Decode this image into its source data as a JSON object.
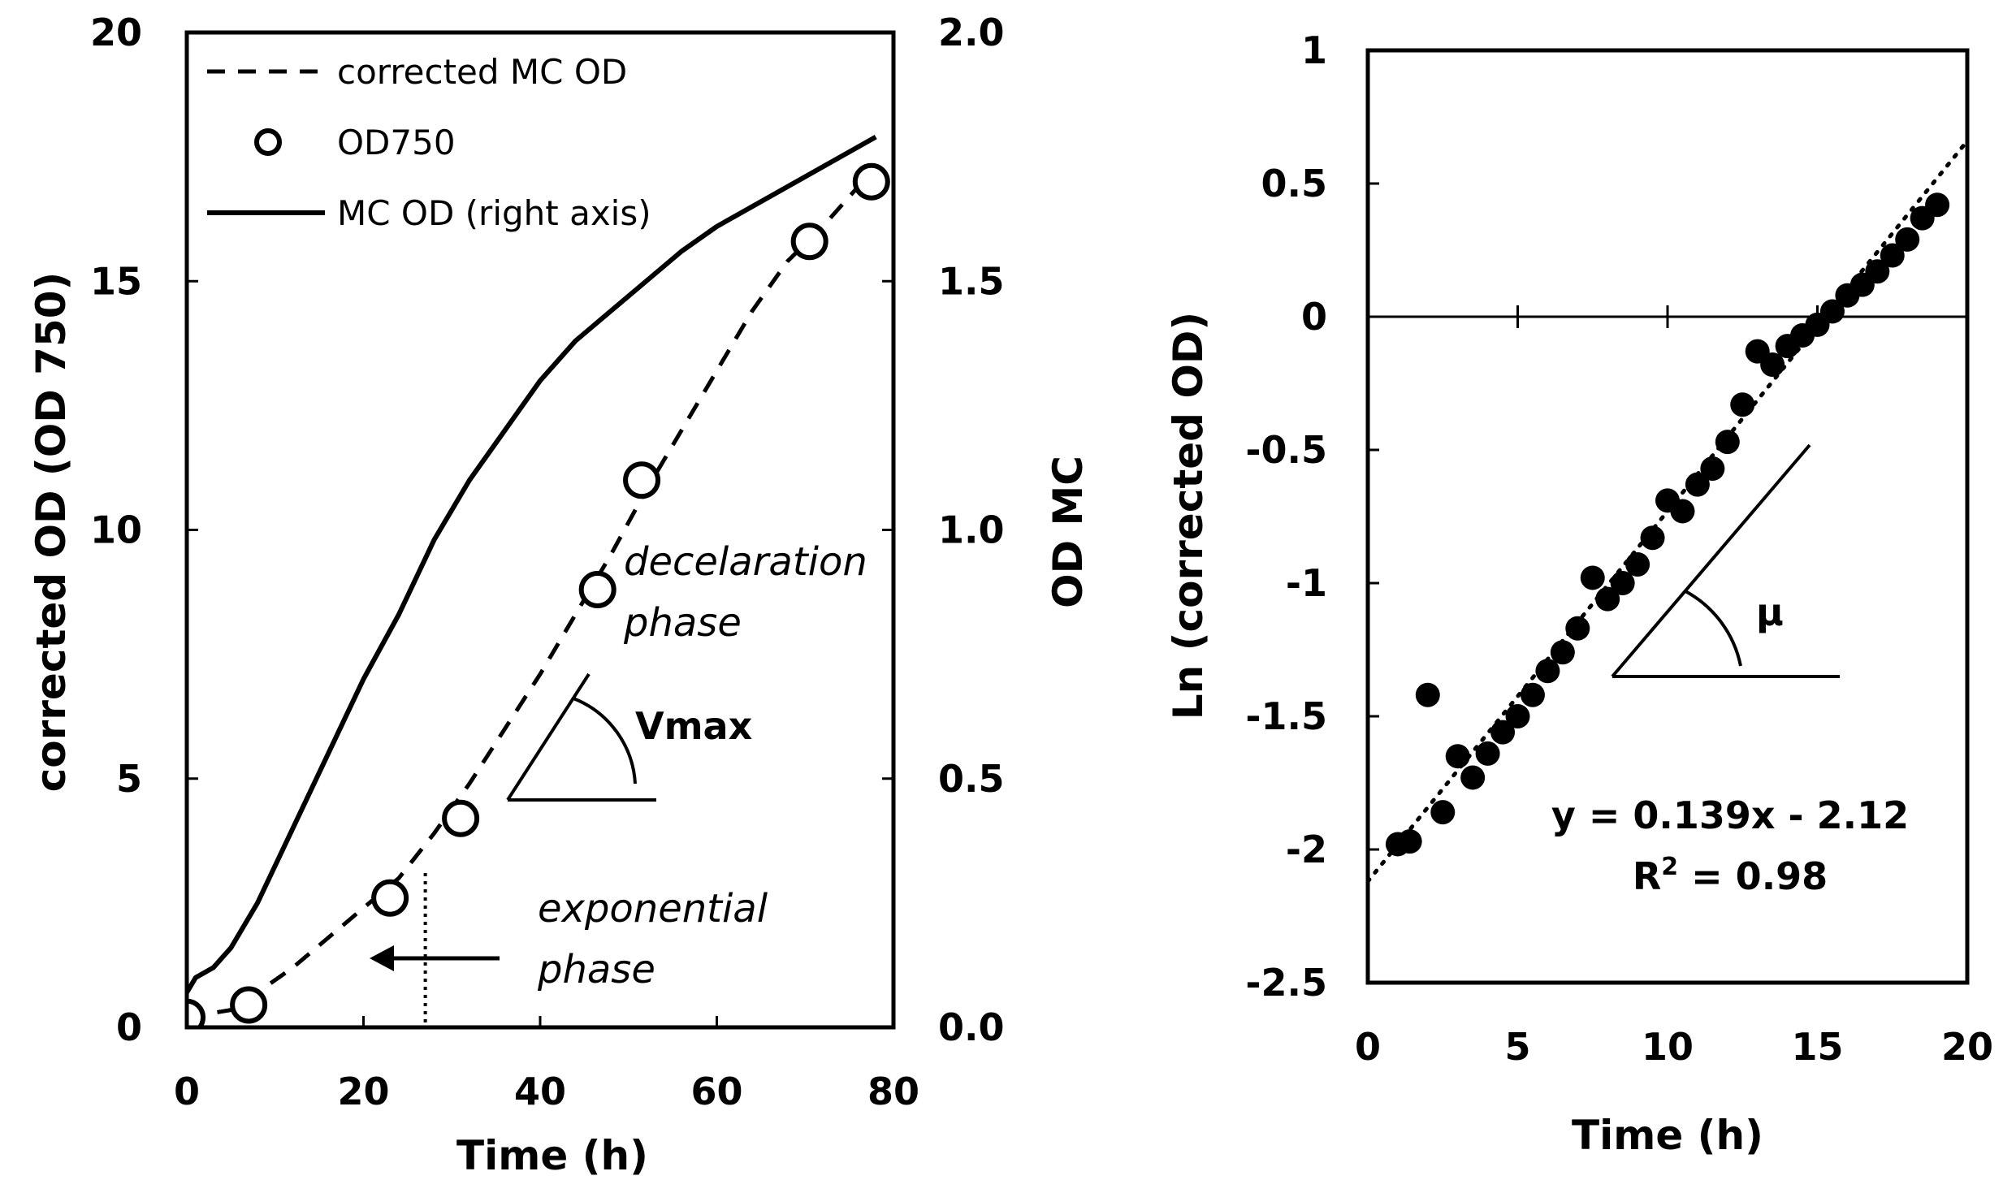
{
  "chart_data": [
    {
      "type": "line",
      "name": "growth-curve",
      "xlabel": "Time (h)",
      "ylabel": "corrected OD (OD 750)",
      "y2label": "OD MC",
      "xlim": [
        0,
        80
      ],
      "ylim": [
        0,
        20
      ],
      "y2lim": [
        0.0,
        2.0
      ],
      "xticks": [
        "0",
        "20",
        "40",
        "60",
        "80"
      ],
      "yticks": [
        "0",
        "5",
        "10",
        "15",
        "20"
      ],
      "y2ticks": [
        "0.0",
        "0.5",
        "1.0",
        "1.5",
        "2.0"
      ],
      "legend_position": "top-left",
      "series": [
        {
          "name": "corrected MC OD",
          "style": "dashed",
          "axis": "left",
          "x": [
            0,
            5,
            8,
            12,
            16,
            20,
            24,
            28,
            32,
            36,
            40,
            44,
            48,
            52,
            56,
            60,
            64,
            68,
            72,
            76,
            78
          ],
          "y": [
            0.2,
            0.35,
            0.7,
            1.2,
            1.8,
            2.4,
            3.0,
            3.9,
            4.9,
            6.0,
            7.1,
            8.3,
            9.5,
            10.8,
            12.0,
            13.2,
            14.4,
            15.4,
            16.1,
            16.9,
            17.3
          ]
        },
        {
          "name": "OD750",
          "style": "open-circle",
          "axis": "left",
          "x": [
            0,
            7,
            23,
            31,
            46.5,
            51.5,
            70.5,
            77.5
          ],
          "y": [
            0.2,
            0.45,
            2.6,
            4.2,
            8.8,
            11.0,
            15.8,
            17.0
          ]
        },
        {
          "name": "MC OD (right axis)",
          "style": "solid",
          "axis": "right",
          "x": [
            0,
            1,
            3,
            5,
            8,
            12,
            16,
            20,
            24,
            28,
            32,
            36,
            40,
            44,
            48,
            52,
            56,
            60,
            64,
            68,
            72,
            76,
            78
          ],
          "y": [
            0.07,
            0.1,
            0.12,
            0.16,
            0.25,
            0.4,
            0.55,
            0.7,
            0.83,
            0.98,
            1.1,
            1.2,
            1.3,
            1.38,
            1.44,
            1.5,
            1.56,
            1.61,
            1.65,
            1.69,
            1.73,
            1.77,
            1.79
          ]
        }
      ],
      "annotations": {
        "decel_line1": "decelaration",
        "decel_line2": "phase",
        "vmax": "Vmax",
        "exp_line1": "exponential",
        "exp_line2": "phase",
        "exp_boundary_x": 27
      }
    },
    {
      "type": "scatter",
      "name": "log-plot",
      "xlabel": "Time (h)",
      "ylabel": "Ln (corrected OD)",
      "xlim": [
        0,
        20
      ],
      "ylim": [
        -2.5,
        1
      ],
      "xticks": [
        "0",
        "5",
        "10",
        "15",
        "20"
      ],
      "yticks": [
        "1",
        "0.5",
        "0",
        "-0.5",
        "-1",
        "-1.5",
        "-2",
        "-2.5"
      ],
      "points": {
        "x": [
          1.0,
          1.4,
          2.0,
          2.5,
          3.0,
          3.5,
          4.0,
          4.5,
          5.0,
          5.5,
          6.0,
          6.5,
          7.0,
          7.5,
          8.0,
          8.5,
          9.0,
          9.5,
          10.0,
          10.5,
          11.0,
          11.5,
          12.0,
          12.5,
          13.0,
          13.5,
          14.0,
          14.5,
          15.0,
          15.5,
          16.0,
          16.5,
          17.0,
          17.5,
          18.0,
          18.5,
          19.0
        ],
        "y": [
          -1.98,
          -1.97,
          -1.42,
          -1.86,
          -1.65,
          -1.73,
          -1.64,
          -1.56,
          -1.5,
          -1.42,
          -1.33,
          -1.26,
          -1.17,
          -0.98,
          -1.06,
          -1.0,
          -0.93,
          -0.83,
          -0.69,
          -0.73,
          -0.63,
          -0.57,
          -0.47,
          -0.33,
          -0.13,
          -0.18,
          -0.11,
          -0.07,
          -0.03,
          0.02,
          0.08,
          0.12,
          0.17,
          0.23,
          0.29,
          0.37,
          0.42
        ]
      },
      "trendline": {
        "slope": 0.139,
        "intercept": -2.12,
        "style": "dotted"
      },
      "equation": "y = 0.139x - 2.12",
      "r2_prefix": "R",
      "r2_sup": "2",
      "r2_value": " = 0.98",
      "mu": "μ"
    }
  ]
}
